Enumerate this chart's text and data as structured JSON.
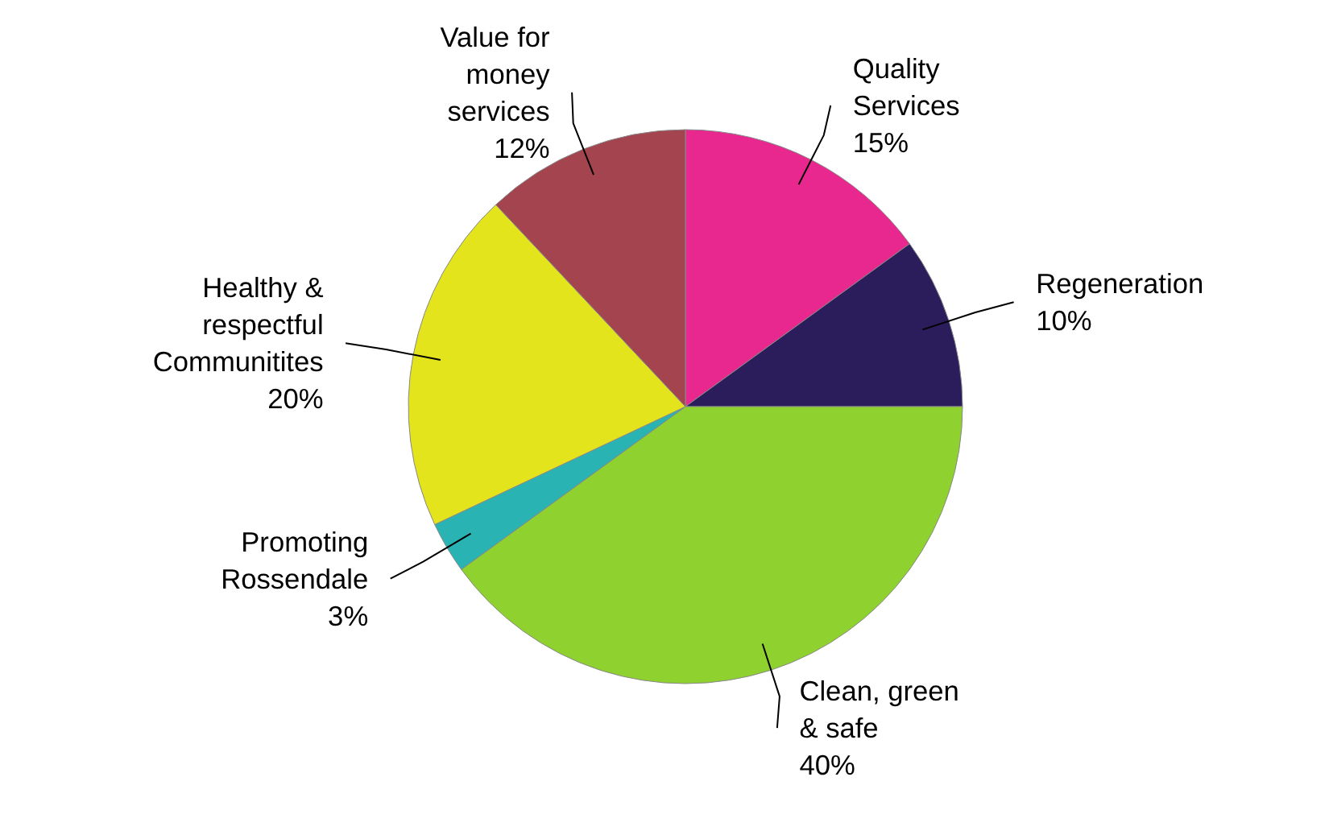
{
  "chart_data": {
    "type": "pie",
    "categories": [
      "Quality\nServices",
      "Regeneration",
      "Clean, green\n& safe",
      "Promoting\nRossendale",
      "Healthy &\nrespectful\nCommunitites",
      "Value for\nmoney\nservices"
    ],
    "values": [
      15,
      10,
      40,
      3,
      20,
      12
    ],
    "colors": [
      "#e8288e",
      "#2b1d5c",
      "#8fd12e",
      "#2ab3b3",
      "#e3e41c",
      "#a3444e"
    ],
    "value_labels": [
      "15%",
      "10%",
      "40%",
      "3%",
      "20%",
      "12%"
    ]
  }
}
